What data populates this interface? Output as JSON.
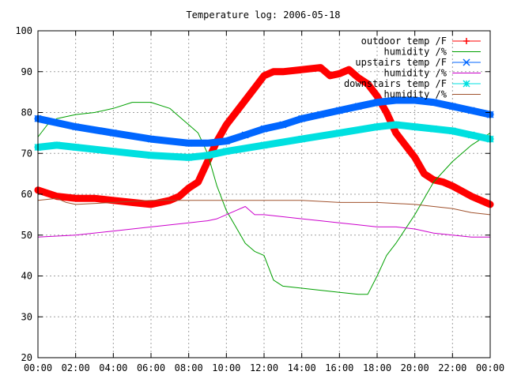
{
  "chart_data": {
    "type": "line",
    "title": "Temperature log: 2006-05-18",
    "xlabel": "",
    "ylabel": "",
    "xlim": [
      0,
      24
    ],
    "ylim": [
      20,
      100
    ],
    "grid": true,
    "legend_position": "top-right",
    "x_tick_labels": [
      "00:00",
      "02:00",
      "04:00",
      "06:00",
      "08:00",
      "10:00",
      "12:00",
      "14:00",
      "16:00",
      "18:00",
      "20:00",
      "22:00",
      "00:00"
    ],
    "y_tick_labels": [
      "20",
      "30",
      "40",
      "50",
      "60",
      "70",
      "80",
      "90",
      "100"
    ],
    "y_ticks": [
      20,
      30,
      40,
      50,
      60,
      70,
      80,
      90,
      100
    ],
    "series": [
      {
        "name": "outdoor temp /F",
        "color": "#ff0000",
        "marker": "plus",
        "style": "thick",
        "x": [
          0,
          1,
          2,
          3,
          4,
          5,
          6,
          7,
          7.5,
          8,
          8.5,
          9,
          9.5,
          10,
          10.5,
          11,
          11.5,
          12,
          12.5,
          13,
          14,
          15,
          15.5,
          16,
          16.5,
          17,
          17.5,
          18,
          18.5,
          19,
          20,
          20.5,
          21,
          21.5,
          22,
          23,
          24
        ],
        "y": [
          61,
          59.5,
          59,
          59,
          58.5,
          58,
          57.5,
          58.5,
          59.5,
          61.5,
          63,
          68,
          73,
          77,
          80,
          83,
          86,
          89,
          90,
          90,
          90.5,
          91,
          89,
          89.5,
          90.5,
          88.5,
          87,
          84,
          80,
          75,
          69,
          65,
          63.5,
          63,
          62,
          59.5,
          57.5
        ]
      },
      {
        "name": "humidity /%",
        "color": "#00a000",
        "marker": "none",
        "style": "thin",
        "x": [
          0,
          0.5,
          1,
          2,
          3,
          4,
          5,
          6,
          7,
          7.5,
          8,
          8.5,
          9,
          9.5,
          10,
          10.5,
          11,
          11.5,
          12,
          12.5,
          13,
          14,
          15,
          16,
          17,
          17.5,
          18,
          18.5,
          19,
          20,
          21,
          22,
          23,
          24
        ],
        "y": [
          74,
          77,
          78.5,
          79.5,
          80,
          81,
          82.5,
          82.5,
          81,
          79,
          77,
          75,
          70,
          62,
          56,
          52,
          48,
          46,
          45,
          39,
          37.5,
          37,
          36.5,
          36,
          35.5,
          35.5,
          40,
          45,
          48,
          55,
          63,
          68,
          72,
          75
        ]
      },
      {
        "name": "upstairs temp /F",
        "color": "#0066ff",
        "marker": "cross",
        "style": "thick",
        "x": [
          0,
          2,
          4,
          6,
          8,
          9,
          10,
          11,
          12,
          13,
          14,
          15,
          16,
          17,
          18,
          19,
          20,
          21,
          22,
          23,
          24
        ],
        "y": [
          78.5,
          76.5,
          75,
          73.5,
          72.5,
          72.5,
          73,
          74.5,
          76,
          77,
          78.5,
          79.5,
          80.5,
          81.5,
          82.5,
          83,
          83,
          82.5,
          81.5,
          80.5,
          79.5
        ]
      },
      {
        "name": "humidity /%",
        "color": "#cc00cc",
        "marker": "none",
        "style": "thin",
        "x": [
          0,
          2,
          4,
          6,
          8,
          9,
          9.5,
          10,
          10.5,
          11,
          11.5,
          12,
          13,
          14,
          15,
          16,
          17,
          18,
          19,
          20,
          21,
          22,
          23,
          24
        ],
        "y": [
          49.5,
          50,
          51,
          52,
          53,
          53.5,
          54,
          55,
          56,
          57,
          55,
          55,
          54.5,
          54,
          53.5,
          53,
          52.5,
          52,
          52,
          51.5,
          50.5,
          50,
          49.5,
          49.5
        ]
      },
      {
        "name": "downstairs temp /F",
        "color": "#00e0e0",
        "marker": "star",
        "style": "thick",
        "x": [
          0,
          1,
          2,
          4,
          6,
          8,
          9,
          10,
          12,
          14,
          16,
          18,
          19,
          20,
          21,
          22,
          23,
          24
        ],
        "y": [
          71.5,
          72,
          71.5,
          70.5,
          69.5,
          69,
          69.5,
          70.5,
          72,
          73.5,
          75,
          76.5,
          77,
          76.5,
          76,
          75.5,
          74.5,
          73.5
        ]
      },
      {
        "name": "humidity /%",
        "color": "#a0522d",
        "marker": "none",
        "style": "thin",
        "x": [
          0,
          1,
          1.5,
          2,
          4,
          6,
          8,
          10,
          12,
          14,
          16,
          18,
          20,
          22,
          23,
          24
        ],
        "y": [
          58.5,
          59,
          58,
          57.5,
          58,
          58.5,
          58.5,
          58.5,
          58.5,
          58.5,
          58,
          58,
          57.5,
          56.5,
          55.5,
          55
        ]
      }
    ]
  }
}
